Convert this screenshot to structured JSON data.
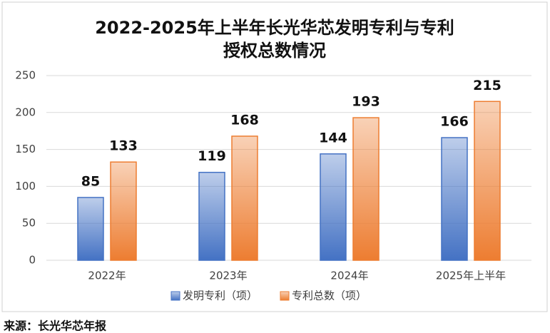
{
  "chart_data": {
    "type": "bar",
    "title": [
      "2022-2025年上半年长光华芯发明专利与专利",
      "授权总数情况"
    ],
    "categories": [
      "2022年",
      "2023年",
      "2024年",
      "2025年上半年"
    ],
    "series": [
      {
        "name": "发明专利（项）",
        "color": "#4472c4",
        "values": [
          85,
          119,
          144,
          166
        ]
      },
      {
        "name": "专利总数（项）",
        "color": "#ed7d31",
        "values": [
          133,
          168,
          193,
          215
        ]
      }
    ],
    "ylim": [
      0,
      250
    ],
    "yticks": [
      0,
      50,
      100,
      150,
      200,
      250
    ],
    "grid": true,
    "legend": "bottom",
    "source": "来源：长光华芯年报"
  }
}
